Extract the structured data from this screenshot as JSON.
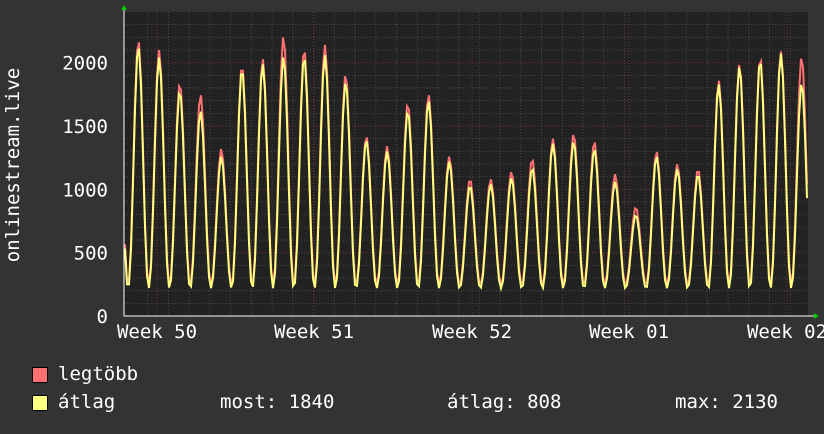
{
  "chart_data": {
    "type": "line",
    "ylabel": "onlinestream.live",
    "ylim": [
      0,
      2400
    ],
    "yticks": [
      0,
      500,
      1000,
      1500,
      2000
    ],
    "xticks": [
      "Week 50",
      "Week 51",
      "Week 52",
      "Week 01",
      "Week 02"
    ],
    "grid": true,
    "background": "#222222",
    "daily_peaks": {
      "max": [
        2180,
        2100,
        1840,
        1750,
        1320,
        1980,
        2030,
        2210,
        2110,
        2140,
        1910,
        1420,
        1340,
        1680,
        1750,
        1260,
        1080,
        1080,
        1140,
        1240,
        1400,
        1440,
        1380,
        1120,
        860,
        1300,
        1200,
        1160,
        1860,
        1990,
        2040,
        2090,
        2050
      ],
      "avg": [
        2130,
        2040,
        1780,
        1620,
        1260,
        1950,
        1990,
        2050,
        2050,
        2060,
        1850,
        1390,
        1300,
        1620,
        1700,
        1220,
        1030,
        1040,
        1090,
        1170,
        1360,
        1380,
        1320,
        1060,
        800,
        1260,
        1160,
        1120,
        1830,
        1970,
        2020,
        2070,
        1840
      ]
    },
    "series": [
      {
        "name": "legtöbb",
        "color": "#ff7070"
      },
      {
        "name": "átlag",
        "color": "#ffff80"
      }
    ]
  },
  "legend": {
    "max_label": "legtöbb",
    "avg_label": "átlag",
    "now_text": "most: 1840",
    "avg_text": "átlag: 808",
    "max_text": "max: 2130"
  }
}
